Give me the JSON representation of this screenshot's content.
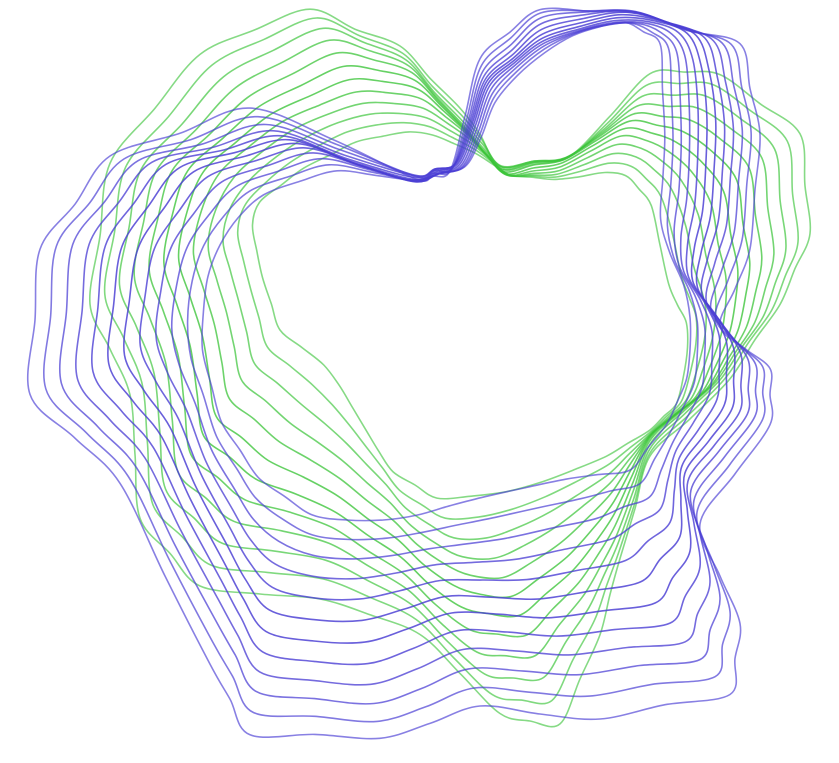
{
  "artwork": {
    "background": "#ffffff",
    "families": [
      {
        "name": "blue-ribbon",
        "color": "#4a3ed4",
        "line_count": 12,
        "opacity": 0.85
      },
      {
        "name": "green-ribbon",
        "color": "#3cc43a",
        "line_count": 12,
        "opacity": 0.8
      }
    ]
  }
}
